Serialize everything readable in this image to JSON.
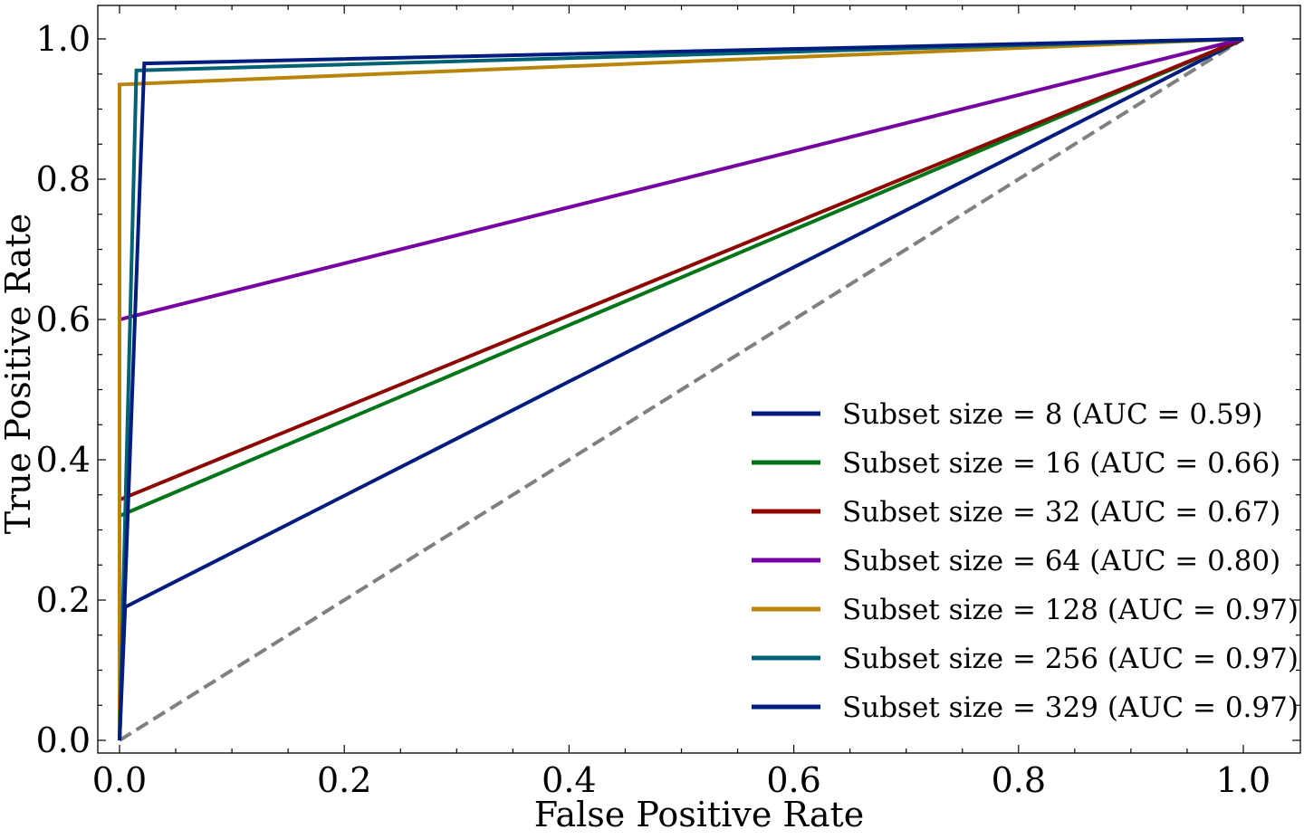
{
  "chart_data": {
    "type": "line",
    "title": "",
    "xlabel": "False Positive Rate",
    "ylabel": "True Positive Rate",
    "xlim": [
      -0.02,
      1.05
    ],
    "ylim": [
      -0.02,
      1.05
    ],
    "xticks": [
      "0.0",
      "0.2",
      "0.4",
      "0.6",
      "0.8",
      "1.0"
    ],
    "yticks": [
      "0.0",
      "0.2",
      "0.4",
      "0.6",
      "0.8",
      "1.0"
    ],
    "grid": false,
    "legend_position": "lower-right",
    "series": [
      {
        "name": "Subset size = 8 (AUC = 0.59)",
        "color": "#001c7f",
        "x": [
          0.0,
          0.005,
          1.0
        ],
        "y": [
          0.0,
          0.19,
          1.0
        ]
      },
      {
        "name": "Subset size = 16 (AUC = 0.66)",
        "color": "#017517",
        "x": [
          0.0,
          0.0,
          1.0
        ],
        "y": [
          0.0,
          0.32,
          1.0
        ]
      },
      {
        "name": "Subset size = 32 (AUC = 0.67)",
        "color": "#8c0800",
        "x": [
          0.0,
          0.0,
          1.0
        ],
        "y": [
          0.0,
          0.343,
          1.0
        ]
      },
      {
        "name": "Subset size = 64 (AUC = 0.80)",
        "color": "#7600a1",
        "x": [
          0.0,
          0.0,
          1.0
        ],
        "y": [
          0.0,
          0.6,
          1.0
        ]
      },
      {
        "name": "Subset size = 128 (AUC = 0.97)",
        "color": "#b8850a",
        "x": [
          0.0,
          0.0,
          1.0
        ],
        "y": [
          0.0,
          0.935,
          1.0
        ]
      },
      {
        "name": "Subset size = 256 (AUC = 0.97)",
        "color": "#006374",
        "x": [
          0.0,
          0.015,
          1.0
        ],
        "y": [
          0.0,
          0.955,
          1.0
        ]
      },
      {
        "name": "Subset size = 329 (AUC = 0.97)",
        "color": "#001c7f",
        "x": [
          0.0,
          0.022,
          1.0
        ],
        "y": [
          0.0,
          0.965,
          1.0
        ]
      }
    ],
    "reference_line": {
      "x": [
        0.0,
        1.0
      ],
      "y": [
        0.0,
        1.0
      ],
      "color": "#808080",
      "style": "dashed"
    }
  }
}
